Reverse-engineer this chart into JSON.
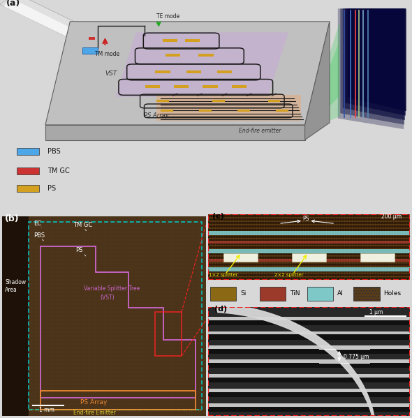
{
  "fig_width": 5.9,
  "fig_height": 5.99,
  "bg_color": "#d8d8d8",
  "panel_labels": [
    "(a)",
    "(b)",
    "(c)",
    "(d)"
  ],
  "chip_top_color": "#c0c0c0",
  "chip_side_color": "#949494",
  "chip_front_color": "#a8a8a8",
  "chip_edge_color": "#606060",
  "vst_color": "#c8a8d8",
  "ps_array_color": "#d8b090",
  "ps_heater_color": "#d4a020",
  "waveguide_color": "#1a1a1a",
  "pbs_color": "#4da6e8",
  "tmgc_color": "#cc3333",
  "farfield_bg": "#06063a",
  "farfield_lines": [
    "#3355aa",
    "#4477cc",
    "#ff4444",
    "#aacc88",
    "#77aacc",
    "#5588bb"
  ],
  "fan_color": "#22cc44",
  "fiber_color": "#cccccc",
  "legend_items": [
    {
      "label": "PBS",
      "color": "#4da6e8"
    },
    {
      "label": "TM GC",
      "color": "#cc3333"
    },
    {
      "label": "PS",
      "color": "#d4a020"
    }
  ],
  "panel_b_bg": "#3c2810",
  "panel_b_shadow": "#1e1208",
  "vst_outline_color": "#cc66cc",
  "ps_arr_outline_color": "#ee8833",
  "ec_outline_color": "#00cccc",
  "emitter_color": "#ddcc33",
  "zoom_box_color": "#ee2222",
  "panel_c_bg": "#5a3c18",
  "al_bar_color": "#7EC8C8",
  "tin_bar_color": "#9B3A2A",
  "si_color": "#8B6914",
  "holes_color": "#3a2808",
  "legend_c_items": [
    {
      "label": "Si",
      "color": "#8B6914",
      "hatch": ""
    },
    {
      "label": "TiN",
      "color": "#9B3A2A",
      "hatch": ""
    },
    {
      "label": "Al",
      "color": "#7EC8C8",
      "hatch": ""
    },
    {
      "label": "Holes",
      "color": "#5a3c18",
      "hatch": "...."
    }
  ],
  "scale_bar_b": "1 mm",
  "scale_bar_c": "200 μm",
  "scale_bar_d": "1 μm",
  "dim_label": "0.775 μm"
}
